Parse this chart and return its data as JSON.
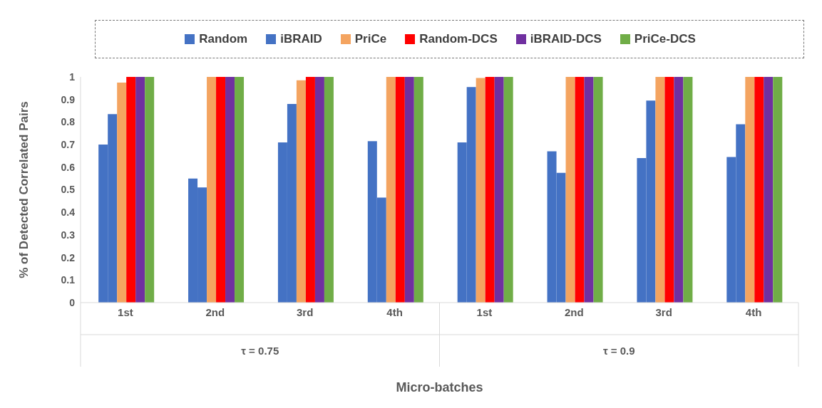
{
  "chart_data": {
    "type": "bar",
    "xlabel": "Micro-batches",
    "ylabel": "% of Detected Correlated Pairs",
    "categories": [
      "1st",
      "2nd",
      "3rd",
      "4th",
      "1st",
      "2nd",
      "3rd",
      "4th"
    ],
    "series": [
      {
        "name": "Random",
        "color": "#4472c4",
        "values": [
          0.7,
          0.55,
          0.71,
          0.715,
          0.71,
          0.67,
          0.64,
          0.645
        ]
      },
      {
        "name": "iBRAID",
        "color": "#4472c4",
        "values": [
          0.835,
          0.51,
          0.88,
          0.465,
          0.955,
          0.575,
          0.895,
          0.79
        ]
      },
      {
        "name": "PriCe",
        "color": "#f4a460",
        "values": [
          0.975,
          1,
          0.985,
          1,
          0.995,
          1,
          1,
          1
        ]
      },
      {
        "name": "Random-DCS",
        "color": "#ff0000",
        "values": [
          1,
          1,
          1,
          1,
          1,
          1,
          1,
          1
        ]
      },
      {
        "name": "iBRAID-DCS",
        "color": "#7030a0",
        "values": [
          1,
          1,
          1,
          1,
          1,
          1,
          1,
          1
        ]
      },
      {
        "name": "PriCe-DCS",
        "color": "#70ad47",
        "values": [
          1,
          1,
          1,
          1,
          1,
          1,
          1,
          1
        ]
      }
    ],
    "annotations": [
      "τ = 0.75",
      "τ = 0.9"
    ],
    "ylim": [
      0,
      1
    ],
    "yticks": [
      0,
      0.1,
      0.2,
      0.3,
      0.4,
      0.5,
      0.6,
      0.7,
      0.8,
      0.9,
      1
    ],
    "grid": false,
    "legend": "top"
  }
}
